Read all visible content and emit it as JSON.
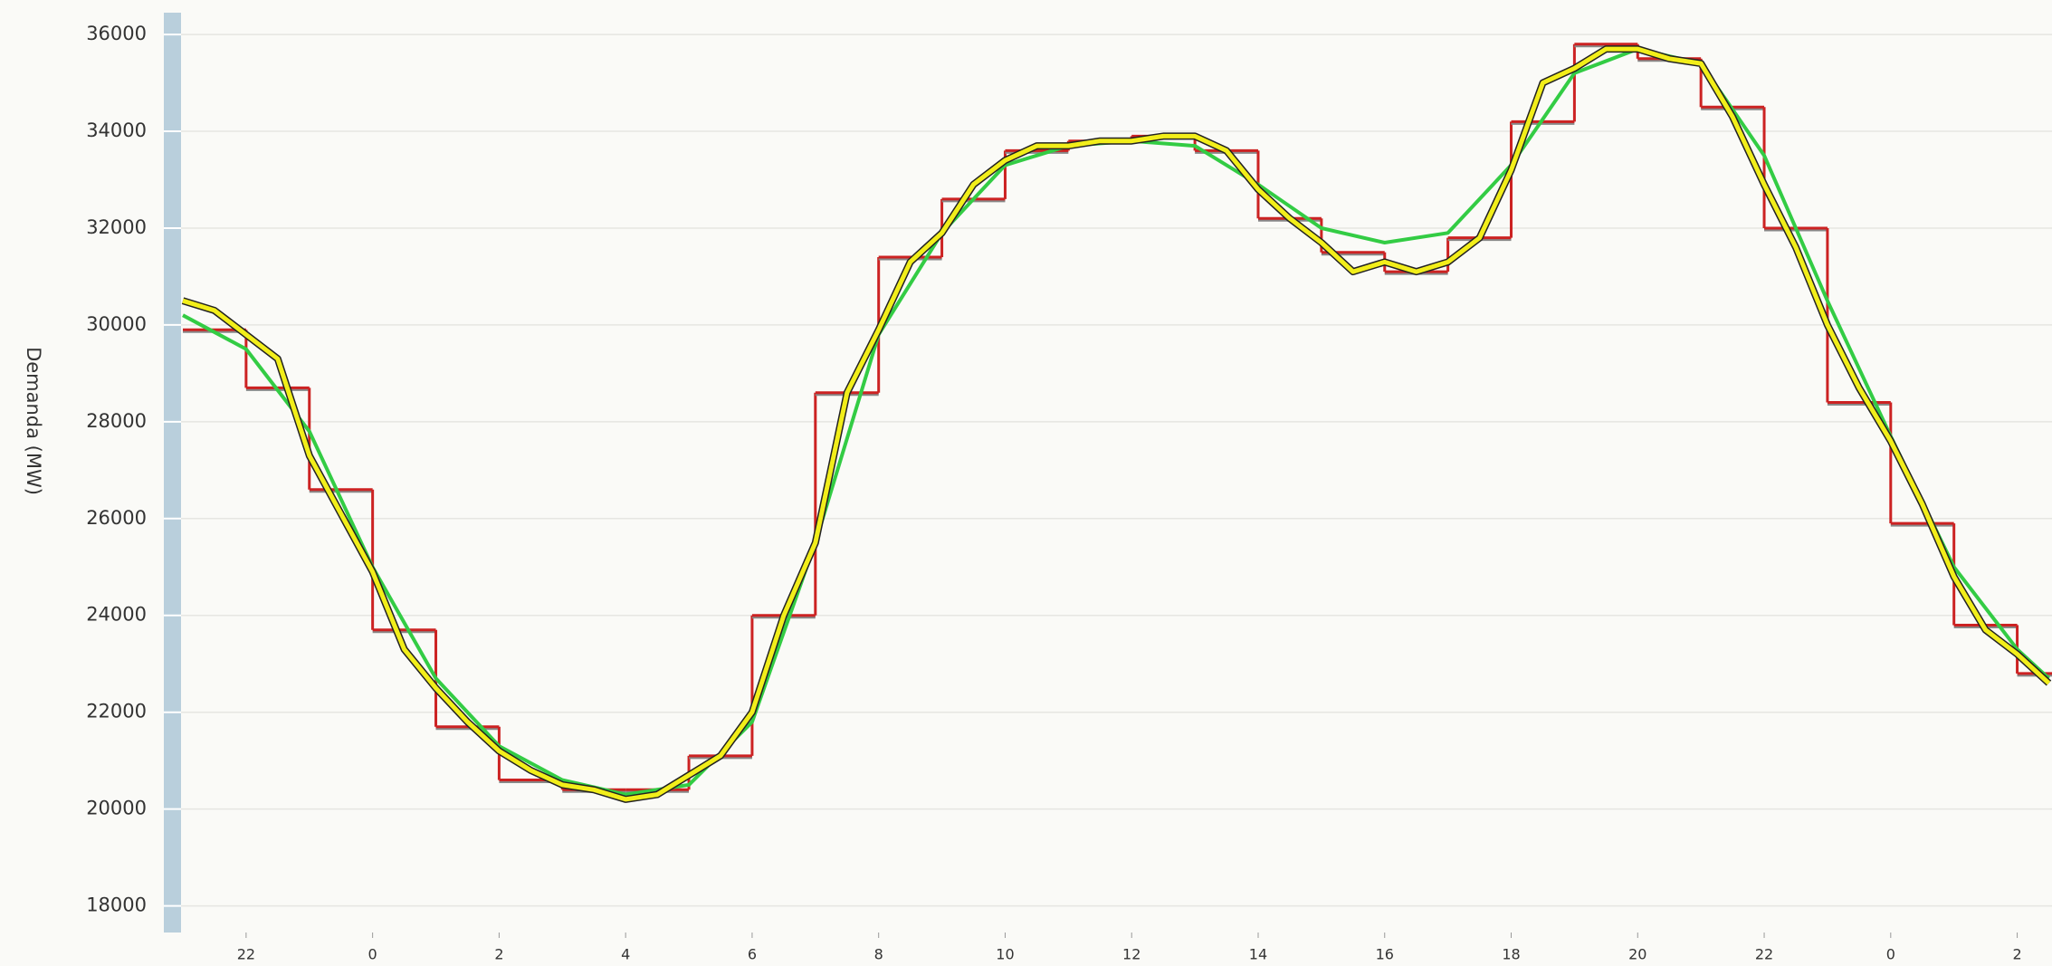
{
  "chart_data": {
    "type": "line",
    "y_label": "Demanda (MW)",
    "xlim": [
      -3,
      26.55
    ],
    "ylim": [
      17450,
      36450
    ],
    "xticks": [
      {
        "value": -2,
        "label": "22"
      },
      0,
      2,
      4,
      6,
      8,
      10,
      12,
      14,
      16,
      18,
      20,
      {
        "value": 22,
        "label": "22"
      },
      {
        "value": 24,
        "label": "0"
      },
      {
        "value": 26,
        "label": "2"
      }
    ],
    "yticks": [
      18000,
      20000,
      22000,
      24000,
      26000,
      28000,
      30000,
      32000,
      34000,
      36000
    ],
    "grid": true,
    "series": [
      {
        "color": "#cc2222",
        "step": true,
        "x": [
          -3,
          -2,
          -1,
          0,
          1,
          2,
          3,
          4,
          5,
          6,
          7,
          8,
          9,
          10,
          11,
          12,
          13,
          14,
          15,
          16,
          17,
          18,
          19,
          20,
          21,
          22,
          23,
          24,
          25,
          26
        ],
        "values": [
          29900,
          28700,
          26600,
          23700,
          21700,
          20600,
          20400,
          20400,
          21100,
          24000,
          28600,
          31400,
          32600,
          33600,
          33800,
          33900,
          33600,
          32200,
          31500,
          31100,
          31800,
          34200,
          35800,
          35500,
          34500,
          32000,
          28400,
          25900,
          23800,
          22800
        ]
      },
      {
        "color": "#33cc44",
        "x": [
          -3,
          -2,
          -1,
          0,
          1,
          2,
          3,
          4,
          5,
          6,
          7,
          8,
          9,
          10,
          11,
          12,
          13,
          14,
          15,
          16,
          17,
          18,
          19,
          20,
          21,
          22,
          23,
          24,
          25,
          26,
          26.5
        ],
        "values": [
          30200,
          29500,
          27800,
          25000,
          22700,
          21300,
          20600,
          20300,
          20500,
          21800,
          25500,
          29800,
          31900,
          33300,
          33700,
          33800,
          33700,
          32900,
          32000,
          31700,
          31900,
          33300,
          35200,
          35700,
          35400,
          33500,
          30500,
          27700,
          25000,
          23300,
          22700
        ]
      },
      {
        "color": "#f2ee1a",
        "shadow": "#222222",
        "x": [
          -3,
          -2.5,
          -2,
          -1.5,
          -1,
          -0.5,
          0,
          0.5,
          1,
          1.5,
          2,
          2.5,
          3,
          3.5,
          4,
          4.5,
          5,
          5.5,
          6,
          6.5,
          7,
          7.5,
          8,
          8.5,
          9,
          9.5,
          10,
          10.5,
          11,
          11.5,
          12,
          12.5,
          13,
          13.5,
          14,
          14.5,
          15,
          15.5,
          16,
          16.5,
          17,
          17.5,
          18,
          18.5,
          19,
          19.5,
          20,
          20.5,
          21,
          21.5,
          22,
          22.5,
          23,
          23.5,
          24,
          24.5,
          25,
          25.5,
          26,
          26.5
        ],
        "values": [
          30500,
          30300,
          29800,
          29300,
          27300,
          26100,
          24900,
          23300,
          22500,
          21800,
          21200,
          20800,
          20500,
          20400,
          20200,
          20300,
          20700,
          21100,
          22000,
          24000,
          25500,
          28600,
          29900,
          31300,
          31900,
          32900,
          33400,
          33700,
          33700,
          33800,
          33800,
          33900,
          33900,
          33600,
          32800,
          32200,
          31700,
          31100,
          31300,
          31100,
          31300,
          31800,
          33200,
          35000,
          35300,
          35700,
          35700,
          35500,
          35400,
          34300,
          32900,
          31600,
          30000,
          28700,
          27600,
          26300,
          24800,
          23700,
          23200,
          22600
        ]
      }
    ]
  }
}
